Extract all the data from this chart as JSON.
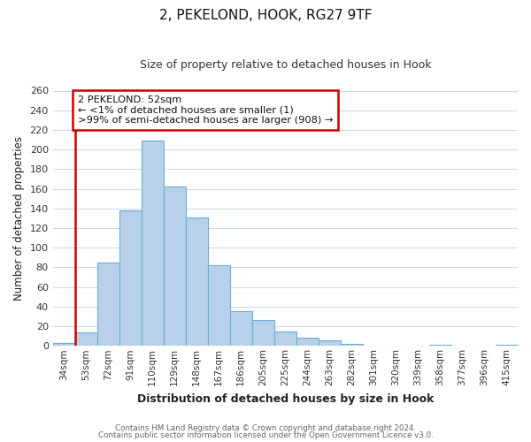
{
  "title": "2, PEKELOND, HOOK, RG27 9TF",
  "subtitle": "Size of property relative to detached houses in Hook",
  "xlabel": "Distribution of detached houses by size in Hook",
  "ylabel": "Number of detached properties",
  "categories": [
    "34sqm",
    "53sqm",
    "72sqm",
    "91sqm",
    "110sqm",
    "129sqm",
    "148sqm",
    "167sqm",
    "186sqm",
    "205sqm",
    "225sqm",
    "244sqm",
    "263sqm",
    "282sqm",
    "301sqm",
    "320sqm",
    "339sqm",
    "358sqm",
    "377sqm",
    "396sqm",
    "415sqm"
  ],
  "values": [
    3,
    14,
    85,
    138,
    209,
    162,
    131,
    82,
    35,
    26,
    15,
    8,
    6,
    2,
    0,
    0,
    0,
    1,
    0,
    0,
    1
  ],
  "bar_color": "#b8d0ea",
  "bar_edgecolor": "#6aaed6",
  "annotation_box_text": "2 PEKELOND: 52sqm\n← <1% of detached houses are smaller (1)\n>99% of semi-detached houses are larger (908) →",
  "annotation_box_color": "#ffffff",
  "annotation_box_edgecolor": "#cc0000",
  "vline_color": "#cc0000",
  "background_color": "#ffffff",
  "grid_color": "#c8d8e8",
  "ylim": [
    0,
    260
  ],
  "yticks": [
    0,
    20,
    40,
    60,
    80,
    100,
    120,
    140,
    160,
    180,
    200,
    220,
    240,
    260
  ],
  "footer_line1": "Contains HM Land Registry data © Crown copyright and database right 2024.",
  "footer_line2": "Contains public sector information licensed under the Open Government Licence v3.0."
}
